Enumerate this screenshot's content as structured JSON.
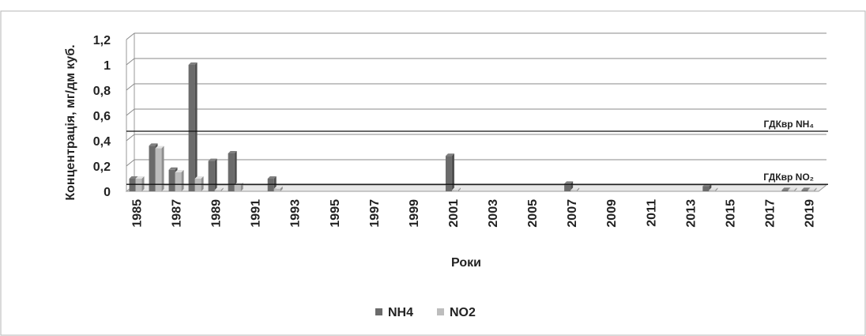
{
  "chart_data": {
    "type": "bar",
    "title": "",
    "xlabel": "Роки",
    "ylabel": "Концентрація, мг/дм куб.",
    "ylim": [
      0,
      1.2
    ],
    "y_ticks": [
      "0",
      "0,2",
      "0,4",
      "0,6",
      "0,8",
      "1",
      "1,2"
    ],
    "y_tick_values": [
      0,
      0.2,
      0.4,
      0.6,
      0.8,
      1.0,
      1.2
    ],
    "x_ticks": [
      "1985",
      "1987",
      "1989",
      "1991",
      "1993",
      "1995",
      "1997",
      "1999",
      "2001",
      "2003",
      "2005",
      "2007",
      "2009",
      "2011",
      "2013",
      "2015",
      "2017",
      "2019"
    ],
    "categories": [
      1985,
      1986,
      1987,
      1988,
      1989,
      1990,
      1991,
      1992,
      1993,
      1994,
      1995,
      1996,
      1997,
      1998,
      1999,
      2000,
      2001,
      2002,
      2003,
      2004,
      2005,
      2006,
      2007,
      2008,
      2009,
      2010,
      2011,
      2012,
      2013,
      2014,
      2015,
      2016,
      2017,
      2018,
      2019
    ],
    "series": [
      {
        "name": "NH4",
        "color": "#6b6b6b",
        "values": [
          0.1,
          0.36,
          0.17,
          1.0,
          0.24,
          0.3,
          0,
          0.1,
          0,
          0,
          0,
          0,
          0,
          0,
          0,
          0,
          0.28,
          0,
          0,
          0,
          0,
          0,
          0.06,
          0,
          0,
          0,
          0,
          0,
          0,
          0.04,
          0,
          0,
          0,
          0.01,
          0.01
        ]
      },
      {
        "name": "NO2",
        "color": "#bdbdbd",
        "values": [
          0.1,
          0.34,
          0.15,
          0.1,
          0.01,
          0.05,
          0,
          0.02,
          0,
          0,
          0,
          0,
          0,
          0,
          0,
          0,
          0.01,
          0,
          0,
          0,
          0,
          0,
          0.01,
          0,
          0,
          0,
          0,
          0,
          0,
          0.01,
          0,
          0,
          0,
          0.01,
          0.01
        ]
      }
    ],
    "reference_lines": [
      {
        "label": "ГДКвр NH₄",
        "value": 0.5
      },
      {
        "label": "ГДКвр NO₂",
        "value": 0.08
      }
    ],
    "grid": true,
    "legend": "bottom-center"
  }
}
